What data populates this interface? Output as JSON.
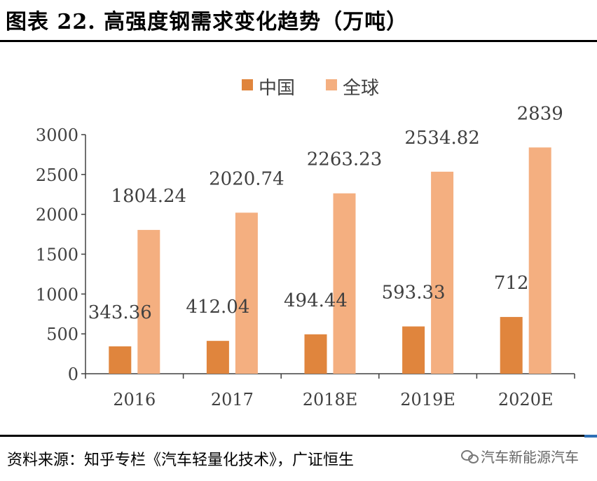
{
  "header": {
    "title": "图表 22. 高强度钢需求变化趋势（万吨）"
  },
  "footer": {
    "source": "资料来源：知乎专栏《汽车轻量化技术》，广证恒生",
    "watermark": "汽车新能源汽车"
  },
  "chart_data": {
    "type": "bar",
    "title": "",
    "xlabel": "",
    "ylabel": "",
    "categories": [
      "2016",
      "2017",
      "2018E",
      "2019E",
      "2020E"
    ],
    "series": [
      {
        "name": "中国",
        "values": [
          343.36,
          412.04,
          494.44,
          593.33,
          712
        ],
        "labels": [
          "343.36",
          "412.04",
          "494.44",
          "593.33",
          "712"
        ],
        "color": "#E0853D"
      },
      {
        "name": "全球",
        "values": [
          1804.24,
          2020.74,
          2263.23,
          2534.82,
          2839
        ],
        "labels": [
          "1804.24",
          "2020.74",
          "2263.23",
          "2534.82",
          "2839"
        ],
        "color": "#F4AF80"
      }
    ],
    "ylim": [
      0,
      3000
    ],
    "yticks": [
      "0",
      "500",
      "1000",
      "1500",
      "2000",
      "2500",
      "3000"
    ],
    "ytick_values": [
      0,
      500,
      1000,
      1500,
      2000,
      2500,
      3000
    ],
    "legend": "top-center",
    "grid": false,
    "axis_color": "#404040"
  }
}
